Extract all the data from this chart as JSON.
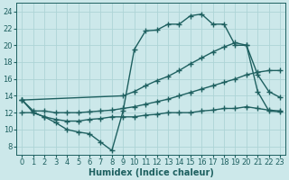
{
  "bg_color": "#cce8ea",
  "grid_color": "#aed4d6",
  "line_color": "#1e6060",
  "line_width": 1.0,
  "marker": "+",
  "marker_size": 4,
  "xlabel": "Humidex (Indice chaleur)",
  "xlabel_fontsize": 7,
  "tick_fontsize": 6,
  "xlim": [
    -0.5,
    23.5
  ],
  "ylim": [
    7,
    25
  ],
  "yticks": [
    8,
    10,
    12,
    14,
    16,
    18,
    20,
    22,
    24
  ],
  "xticks": [
    0,
    1,
    2,
    3,
    4,
    5,
    6,
    7,
    8,
    9,
    10,
    11,
    12,
    13,
    14,
    15,
    16,
    17,
    18,
    19,
    20,
    21,
    22,
    23
  ],
  "line1_x": [
    0,
    1,
    2,
    3,
    4,
    5,
    6,
    7,
    8,
    9,
    10,
    11,
    12,
    13,
    14,
    15,
    16,
    17,
    18,
    19,
    20,
    21,
    22,
    23
  ],
  "line1_y": [
    13.5,
    12.0,
    11.5,
    10.8,
    10.0,
    9.7,
    9.5,
    8.5,
    7.5,
    12.2,
    19.5,
    21.7,
    21.8,
    22.5,
    22.5,
    23.5,
    23.7,
    22.5,
    22.5,
    20.0,
    20.0,
    14.5,
    12.2,
    12.1
  ],
  "line2_x": [
    0,
    9,
    10,
    11,
    12,
    13,
    14,
    15,
    16,
    17,
    18,
    19,
    20,
    21,
    22,
    23
  ],
  "line2_y": [
    13.5,
    14.0,
    14.5,
    15.2,
    15.8,
    16.3,
    17.0,
    17.8,
    18.5,
    19.2,
    19.8,
    20.3,
    20.0,
    16.5,
    14.5,
    13.8
  ],
  "line3_x": [
    0,
    1,
    2,
    3,
    4,
    5,
    6,
    7,
    8,
    9,
    10,
    11,
    12,
    13,
    14,
    15,
    16,
    17,
    18,
    19,
    20,
    21,
    22,
    23
  ],
  "line3_y": [
    13.5,
    12.2,
    12.2,
    12.0,
    12.0,
    12.0,
    12.1,
    12.2,
    12.3,
    12.5,
    12.7,
    13.0,
    13.3,
    13.6,
    14.0,
    14.4,
    14.8,
    15.2,
    15.6,
    16.0,
    16.5,
    16.8,
    17.0,
    17.0
  ],
  "line4_x": [
    0,
    1,
    2,
    3,
    4,
    5,
    6,
    7,
    8,
    9,
    10,
    11,
    12,
    13,
    14,
    15,
    16,
    17,
    18,
    19,
    20,
    21,
    22,
    23
  ],
  "line4_y": [
    12.0,
    12.0,
    11.5,
    11.2,
    11.0,
    11.0,
    11.2,
    11.3,
    11.5,
    11.5,
    11.5,
    11.7,
    11.8,
    12.0,
    12.0,
    12.0,
    12.2,
    12.3,
    12.5,
    12.5,
    12.7,
    12.5,
    12.3,
    12.2
  ]
}
